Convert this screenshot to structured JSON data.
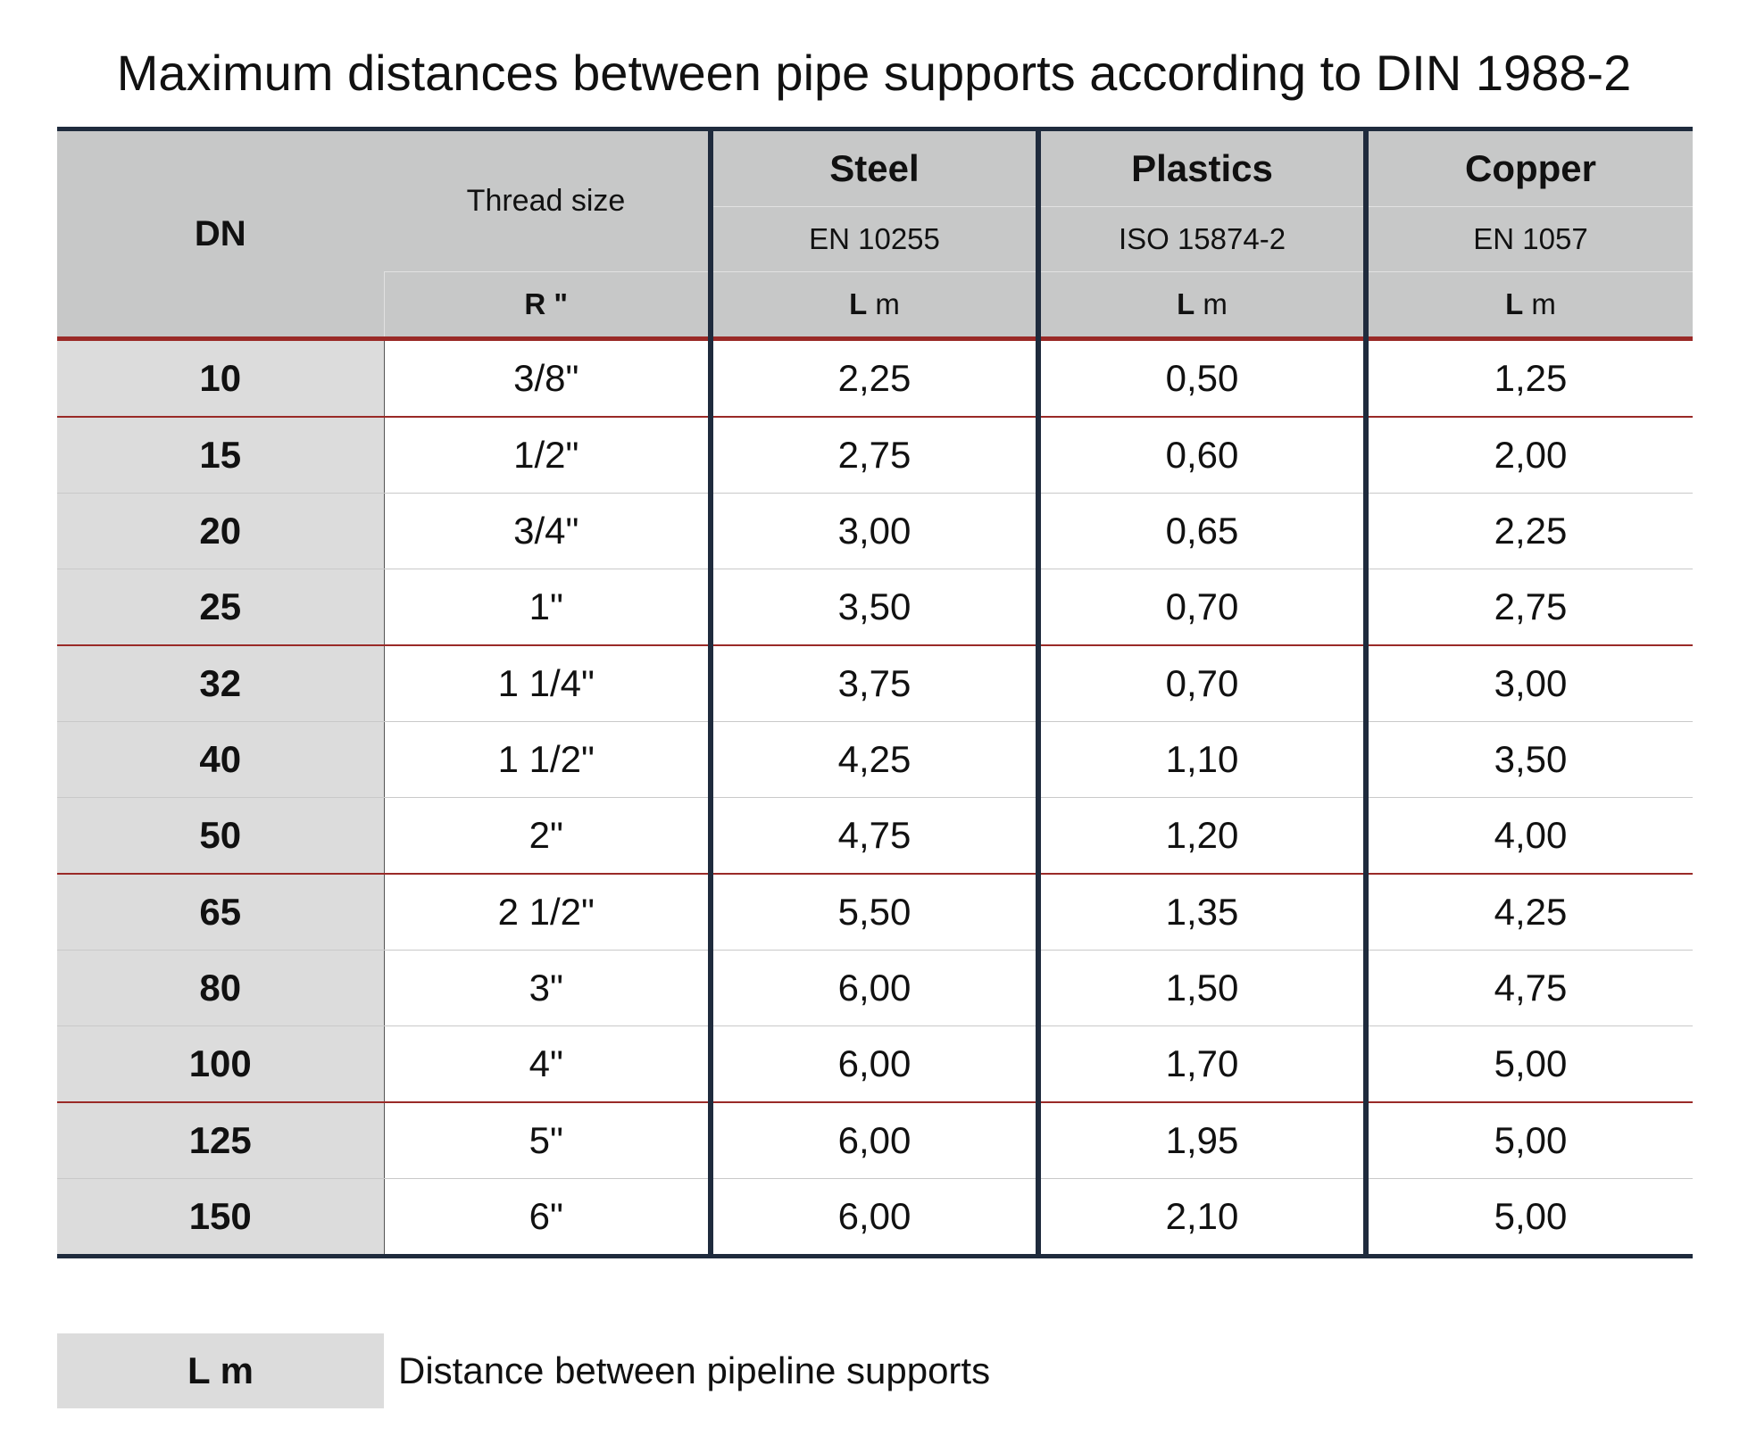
{
  "title": "Maximum distances between pipe supports according to DIN 1988-2",
  "header": {
    "dn": "DN",
    "thread": "Thread size",
    "thread_unit": "R \"",
    "steel": {
      "name": "Steel",
      "standard": "EN 10255",
      "unit_bold": "L",
      "unit": " m"
    },
    "plastics": {
      "name": "Plastics",
      "standard": "ISO 15874-2",
      "unit_bold": "L",
      "unit": " m"
    },
    "copper": {
      "name": "Copper",
      "standard": "EN 1057",
      "unit_bold": "L",
      "unit": " m"
    }
  },
  "rows": [
    {
      "dn": "10",
      "thread": "3/8\"",
      "steel": "2,25",
      "plastics": "0,50",
      "copper": "1,25"
    },
    {
      "dn": "15",
      "thread": "1/2\"",
      "steel": "2,75",
      "plastics": "0,60",
      "copper": "2,00"
    },
    {
      "dn": "20",
      "thread": "3/4\"",
      "steel": "3,00",
      "plastics": "0,65",
      "copper": "2,25"
    },
    {
      "dn": "25",
      "thread": "1\"",
      "steel": "3,50",
      "plastics": "0,70",
      "copper": "2,75"
    },
    {
      "dn": "32",
      "thread": "1 1/4\"",
      "steel": "3,75",
      "plastics": "0,70",
      "copper": "3,00"
    },
    {
      "dn": "40",
      "thread": "1 1/2\"",
      "steel": "4,25",
      "plastics": "1,10",
      "copper": "3,50"
    },
    {
      "dn": "50",
      "thread": "2\"",
      "steel": "4,75",
      "plastics": "1,20",
      "copper": "4,00"
    },
    {
      "dn": "65",
      "thread": "2 1/2\"",
      "steel": "5,50",
      "plastics": "1,35",
      "copper": "4,25"
    },
    {
      "dn": "80",
      "thread": "3\"",
      "steel": "6,00",
      "plastics": "1,50",
      "copper": "4,75"
    },
    {
      "dn": "100",
      "thread": "4\"",
      "steel": "6,00",
      "plastics": "1,70",
      "copper": "5,00"
    },
    {
      "dn": "125",
      "thread": "5\"",
      "steel": "6,00",
      "plastics": "1,95",
      "copper": "5,00"
    },
    {
      "dn": "150",
      "thread": "6\"",
      "steel": "6,00",
      "plastics": "2,10",
      "copper": "5,00"
    }
  ],
  "legend": {
    "key": "L m",
    "text": "Distance between pipeline supports"
  }
}
